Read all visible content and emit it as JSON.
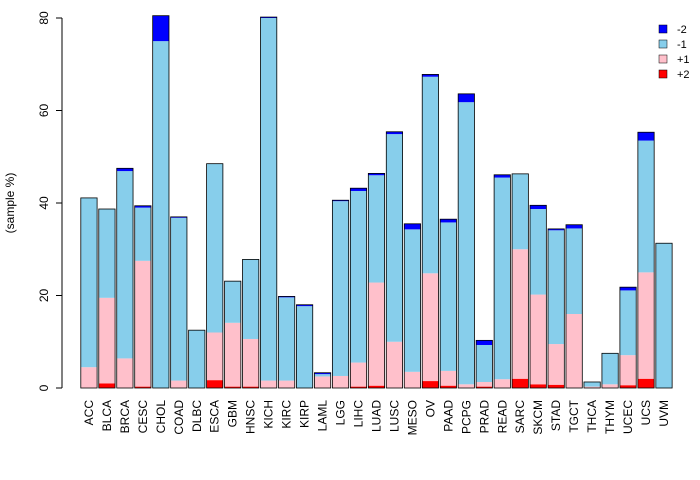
{
  "chart_data": {
    "type": "bar",
    "stacked": true,
    "title": "",
    "xlabel": "",
    "ylabel": "(sample %)",
    "ylim": [
      0,
      80
    ],
    "yticks": [
      0,
      20,
      40,
      60,
      80
    ],
    "grid": false,
    "legend_position": "top-right",
    "categories": [
      "ACC",
      "BLCA",
      "BRCA",
      "CESC",
      "CHOL",
      "COAD",
      "DLBC",
      "ESCA",
      "GBM",
      "HNSC",
      "KICH",
      "KIRC",
      "KIRP",
      "LAML",
      "LGG",
      "LIHC",
      "LUAD",
      "LUSC",
      "MESO",
      "OV",
      "PAAD",
      "PCPG",
      "PRAD",
      "READ",
      "SARC",
      "SKCM",
      "STAD",
      "TGCT",
      "THCA",
      "THYM",
      "UCEC",
      "UCS",
      "UVM"
    ],
    "series": [
      {
        "name": "+2",
        "color": "#ff0000",
        "values": [
          0,
          1,
          0,
          0.3,
          0,
          0,
          0,
          1.7,
          0.3,
          0.3,
          0,
          0,
          0,
          0,
          0,
          0.3,
          0.5,
          0,
          0,
          1.5,
          0.5,
          0,
          0.3,
          0,
          2,
          0.8,
          0.7,
          0,
          0,
          0,
          0.6,
          2,
          0
        ]
      },
      {
        "name": "+1",
        "color": "#ffc0cb",
        "values": [
          4.5,
          18.5,
          6.4,
          27.2,
          0,
          1.6,
          0,
          10.3,
          13.8,
          10.3,
          1.6,
          1.6,
          0,
          2.5,
          2.6,
          5.2,
          22.3,
          10,
          3.5,
          23.3,
          3.2,
          0.8,
          1,
          1.9,
          28,
          19.4,
          8.8,
          16,
          0.3,
          0.8,
          6.5,
          23,
          0
        ]
      },
      {
        "name": "-1",
        "color": "#87ceeb",
        "values": [
          36.6,
          19.2,
          40.5,
          11.5,
          75,
          35.2,
          12.5,
          36.5,
          9,
          17.2,
          78.4,
          18,
          17.7,
          0.5,
          37.8,
          37.1,
          23.2,
          44.9,
          30.8,
          42.5,
          32.1,
          61,
          8,
          43.6,
          16.3,
          18.5,
          24.6,
          18.5,
          1,
          6.7,
          14,
          28.5,
          31.3
        ]
      },
      {
        "name": "-2",
        "color": "#0000ff",
        "values": [
          0,
          0,
          0.6,
          0.4,
          5.5,
          0.2,
          0,
          0,
          0,
          0,
          0.2,
          0.2,
          0.3,
          0.3,
          0.2,
          0.6,
          0.4,
          0.5,
          1.2,
          0.5,
          0.7,
          1.8,
          1,
          0.6,
          0,
          0.8,
          0.3,
          0.8,
          0,
          0,
          0.7,
          1.8,
          0
        ]
      }
    ],
    "legend_order": [
      "-2",
      "-1",
      "+1",
      "+2"
    ]
  }
}
